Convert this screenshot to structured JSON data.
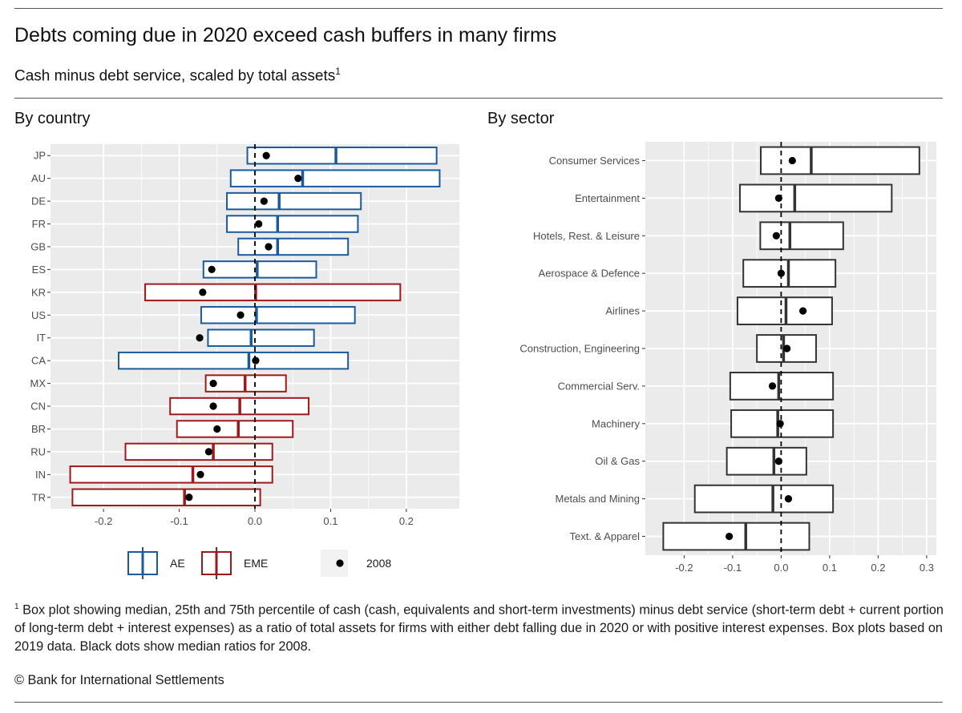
{
  "title": "Debts coming due in 2020 exceed cash buffers in many firms",
  "subtitle": "Cash minus debt service, scaled by total assets",
  "subtitle_note": "1",
  "footnote": {
    "marker": "1",
    "text": "Box plot showing median, 25th and 75th percentile of cash (cash, equivalents and short-term investments) minus debt service (short-term debt + current portion of long-term debt + interest expenses) as a ratio of total assets for firms with either debt falling due in 2020 or with positive interest expenses. Box plots based on 2019 data. Black dots show median ratios for 2008."
  },
  "copyright": "© Bank for International Settlements",
  "colors": {
    "AE": "#1a5a9e",
    "EME": "#9e1a1a",
    "sector": "#333333",
    "panel_bg": "#ebebeb",
    "grid": "#ffffff",
    "dot": "#000000"
  },
  "chart_data": [
    {
      "type": "boxplot",
      "panel_title": "By country",
      "orientation": "horizontal",
      "xlim": [
        -0.27,
        0.27
      ],
      "xticks": [
        -0.2,
        -0.1,
        0.0,
        0.1,
        0.2
      ],
      "xtick_labels": [
        "-0.2",
        "-0.1",
        "0.0",
        "0.1",
        "0.2"
      ],
      "reference_line": 0,
      "legend": {
        "position": "bottom",
        "items": [
          {
            "key": "AE",
            "label": "AE",
            "kind": "box"
          },
          {
            "key": "EME",
            "label": "EME",
            "kind": "box"
          },
          {
            "key": "dot",
            "label": "2008",
            "kind": "dot"
          }
        ]
      },
      "categories": [
        {
          "label": "JP",
          "group": "AE",
          "q1": -0.01,
          "median": 0.107,
          "q3": 0.24,
          "dot2008": 0.015
        },
        {
          "label": "AU",
          "group": "AE",
          "q1": -0.032,
          "median": 0.063,
          "q3": 0.244,
          "dot2008": 0.057
        },
        {
          "label": "DE",
          "group": "AE",
          "q1": -0.037,
          "median": 0.032,
          "q3": 0.14,
          "dot2008": 0.012
        },
        {
          "label": "FR",
          "group": "AE",
          "q1": -0.037,
          "median": 0.03,
          "q3": 0.136,
          "dot2008": 0.005
        },
        {
          "label": "GB",
          "group": "AE",
          "q1": -0.022,
          "median": 0.03,
          "q3": 0.123,
          "dot2008": 0.018
        },
        {
          "label": "ES",
          "group": "AE",
          "q1": -0.068,
          "median": 0.003,
          "q3": 0.081,
          "dot2008": -0.057
        },
        {
          "label": "KR",
          "group": "EME",
          "q1": -0.145,
          "median": 0.001,
          "q3": 0.192,
          "dot2008": -0.069
        },
        {
          "label": "US",
          "group": "AE",
          "q1": -0.071,
          "median": 0.002,
          "q3": 0.132,
          "dot2008": -0.019
        },
        {
          "label": "IT",
          "group": "AE",
          "q1": -0.062,
          "median": -0.005,
          "q3": 0.078,
          "dot2008": -0.073
        },
        {
          "label": "CA",
          "group": "AE",
          "q1": -0.18,
          "median": -0.008,
          "q3": 0.123,
          "dot2008": 0.001
        },
        {
          "label": "MX",
          "group": "EME",
          "q1": -0.065,
          "median": -0.013,
          "q3": 0.041,
          "dot2008": -0.055
        },
        {
          "label": "CN",
          "group": "EME",
          "q1": -0.112,
          "median": -0.02,
          "q3": 0.071,
          "dot2008": -0.055
        },
        {
          "label": "BR",
          "group": "EME",
          "q1": -0.103,
          "median": -0.022,
          "q3": 0.05,
          "dot2008": -0.05
        },
        {
          "label": "RU",
          "group": "EME",
          "q1": -0.171,
          "median": -0.055,
          "q3": 0.023,
          "dot2008": -0.061
        },
        {
          "label": "IN",
          "group": "EME",
          "q1": -0.244,
          "median": -0.082,
          "q3": 0.023,
          "dot2008": -0.072
        },
        {
          "label": "TR",
          "group": "EME",
          "q1": -0.241,
          "median": -0.093,
          "q3": 0.007,
          "dot2008": -0.087
        }
      ]
    },
    {
      "type": "boxplot",
      "panel_title": "By sector",
      "orientation": "horizontal",
      "xlim": [
        -0.28,
        0.32
      ],
      "xticks": [
        -0.2,
        -0.1,
        0.0,
        0.1,
        0.2,
        0.3
      ],
      "xtick_labels": [
        "-0.2",
        "-0.1",
        "0.0",
        "0.1",
        "0.2",
        "0.3"
      ],
      "reference_line": 0,
      "categories": [
        {
          "label": "Consumer Services",
          "q1": -0.042,
          "median": 0.062,
          "q3": 0.285,
          "dot2008": 0.023
        },
        {
          "label": "Entertainment",
          "q1": -0.085,
          "median": 0.028,
          "q3": 0.228,
          "dot2008": -0.005
        },
        {
          "label": "Hotels, Rest. & Leisure",
          "q1": -0.043,
          "median": 0.018,
          "q3": 0.128,
          "dot2008": -0.01
        },
        {
          "label": "Aerospace & Defence",
          "q1": -0.078,
          "median": 0.015,
          "q3": 0.112,
          "dot2008": 0.0
        },
        {
          "label": "Airlines",
          "q1": -0.09,
          "median": 0.01,
          "q3": 0.105,
          "dot2008": 0.045
        },
        {
          "label": "Construction, Engineering",
          "q1": -0.05,
          "median": 0.005,
          "q3": 0.072,
          "dot2008": 0.012
        },
        {
          "label": "Commercial Serv.",
          "q1": -0.105,
          "median": -0.005,
          "q3": 0.107,
          "dot2008": -0.018
        },
        {
          "label": "Machinery",
          "q1": -0.103,
          "median": -0.007,
          "q3": 0.107,
          "dot2008": -0.002
        },
        {
          "label": "Oil & Gas",
          "q1": -0.112,
          "median": -0.015,
          "q3": 0.052,
          "dot2008": -0.005
        },
        {
          "label": "Metals and Mining",
          "q1": -0.178,
          "median": -0.017,
          "q3": 0.107,
          "dot2008": 0.015
        },
        {
          "label": "Text. & Apparel",
          "q1": -0.243,
          "median": -0.073,
          "q3": 0.058,
          "dot2008": -0.107
        }
      ]
    }
  ]
}
